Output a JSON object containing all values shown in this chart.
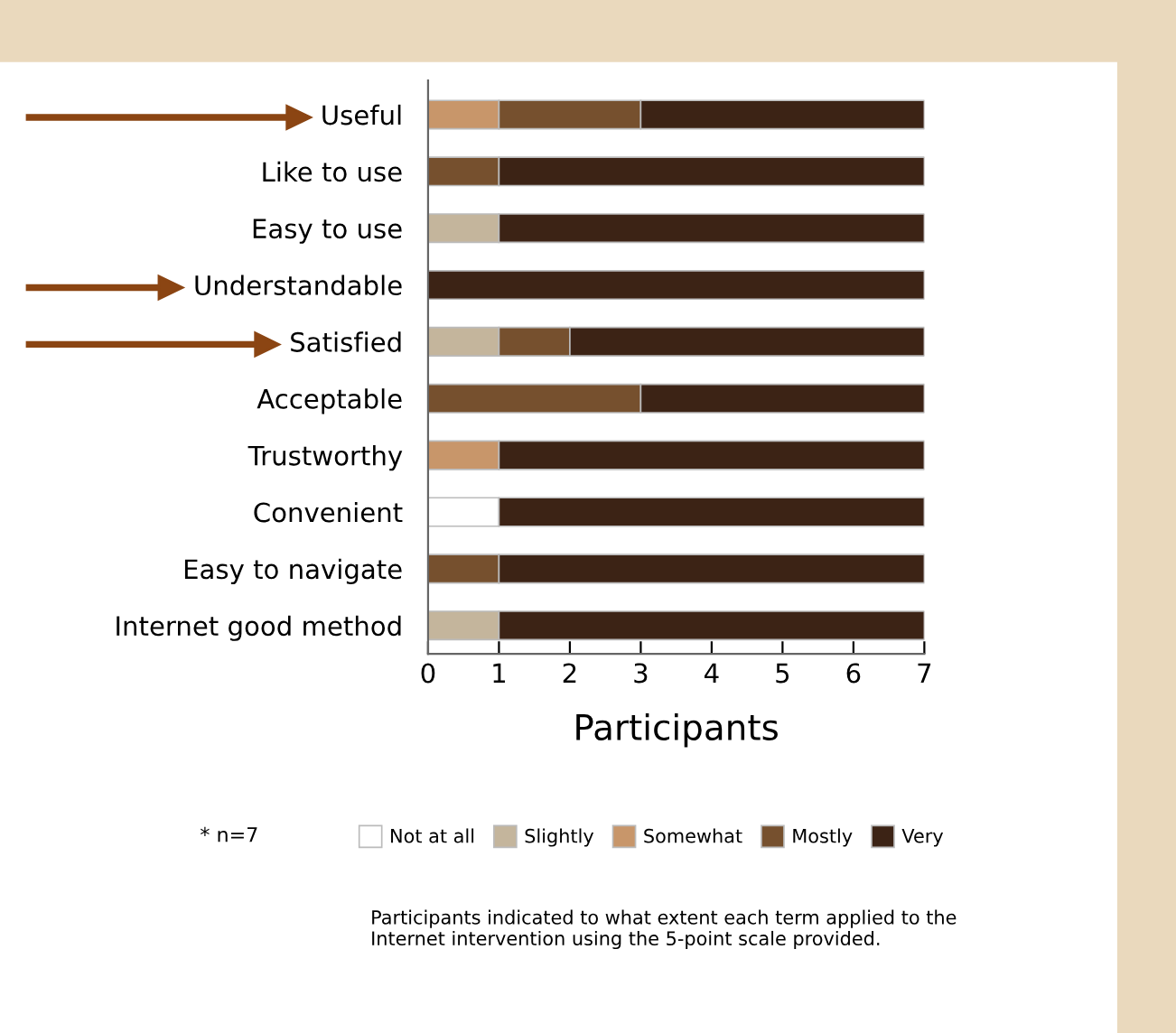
{
  "chart_data": {
    "type": "bar",
    "orientation": "horizontal",
    "stacked": true,
    "categories": [
      "Useful",
      "Like to use",
      "Easy to use",
      "Understandable",
      "Satisfied",
      "Acceptable",
      "Trustworthy",
      "Convenient",
      "Easy to navigate",
      "Internet good method"
    ],
    "series": [
      {
        "name": "Not at all",
        "color": "#ffffff",
        "values": [
          0,
          0,
          0,
          0,
          0,
          0,
          0,
          1,
          0,
          0
        ]
      },
      {
        "name": "Slightly",
        "color": "#c4b59c",
        "values": [
          0,
          0,
          1,
          0,
          1,
          0,
          0,
          0,
          0,
          1
        ]
      },
      {
        "name": "Somewhat",
        "color": "#c8966a",
        "values": [
          1,
          0,
          0,
          0,
          0,
          0,
          1,
          0,
          0,
          0
        ]
      },
      {
        "name": "Mostly",
        "color": "#76502e",
        "values": [
          2,
          1,
          0,
          0,
          1,
          3,
          0,
          0,
          1,
          0
        ]
      },
      {
        "name": "Very",
        "color": "#3c2315",
        "values": [
          4,
          6,
          6,
          7,
          5,
          4,
          6,
          6,
          6,
          6
        ]
      }
    ],
    "xlim": [
      0,
      7
    ],
    "xticks": [
      0,
      1,
      2,
      3,
      4,
      5,
      6,
      7
    ],
    "xlabel": "Participants",
    "legend": "bottom",
    "grid": false,
    "annotations": [
      "* n=7",
      "Participants indicated to what extent each term applied to the Internet intervention using the 5-point scale provided."
    ]
  }
}
